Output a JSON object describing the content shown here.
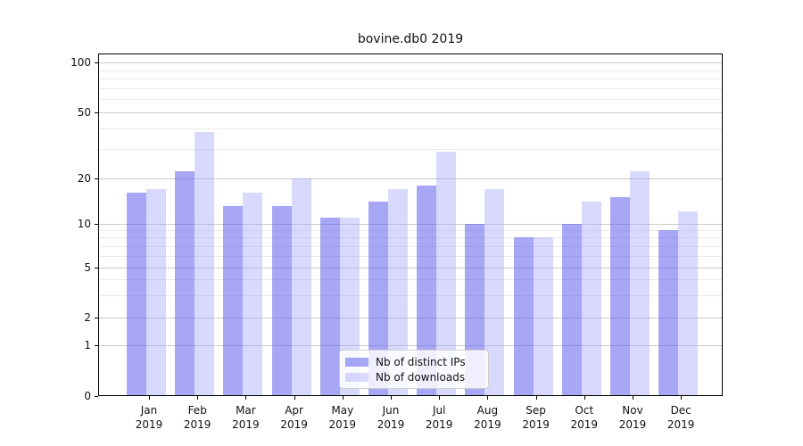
{
  "title": "bovine.db0 2019",
  "legend": {
    "items": [
      {
        "label": "Nb of distinct IPs",
        "color": "#a5a5f3"
      },
      {
        "label": "Nb of downloads",
        "color": "#d9d9fa"
      }
    ]
  },
  "chart_data": {
    "type": "bar",
    "title": "bovine.db0 2019",
    "categories": [
      "Jan 2019",
      "Feb 2019",
      "Mar 2019",
      "Apr 2019",
      "May 2019",
      "Jun 2019",
      "Jul 2019",
      "Aug 2019",
      "Sep 2019",
      "Oct 2019",
      "Nov 2019",
      "Dec 2019"
    ],
    "series": [
      {
        "name": "Nb of distinct IPs",
        "color": "#a5a5f3",
        "values": [
          16,
          22,
          13,
          13,
          11,
          14,
          18,
          10,
          8,
          10,
          15,
          9
        ]
      },
      {
        "name": "Nb of downloads",
        "color": "#d9d9fa",
        "values": [
          17,
          38,
          16,
          20,
          11,
          17,
          29,
          17,
          8,
          14,
          22,
          12
        ]
      }
    ],
    "xlabel": "",
    "ylabel": "",
    "y_scale": "symlog",
    "y_ticks": [
      0,
      1,
      2,
      5,
      10,
      20,
      50,
      100
    ],
    "y_minor_ticks": [
      3,
      4,
      6,
      7,
      8,
      9,
      30,
      40,
      60,
      70,
      80,
      90
    ],
    "ylim": [
      0,
      113
    ],
    "grid": true,
    "legend_position": "lower center"
  }
}
